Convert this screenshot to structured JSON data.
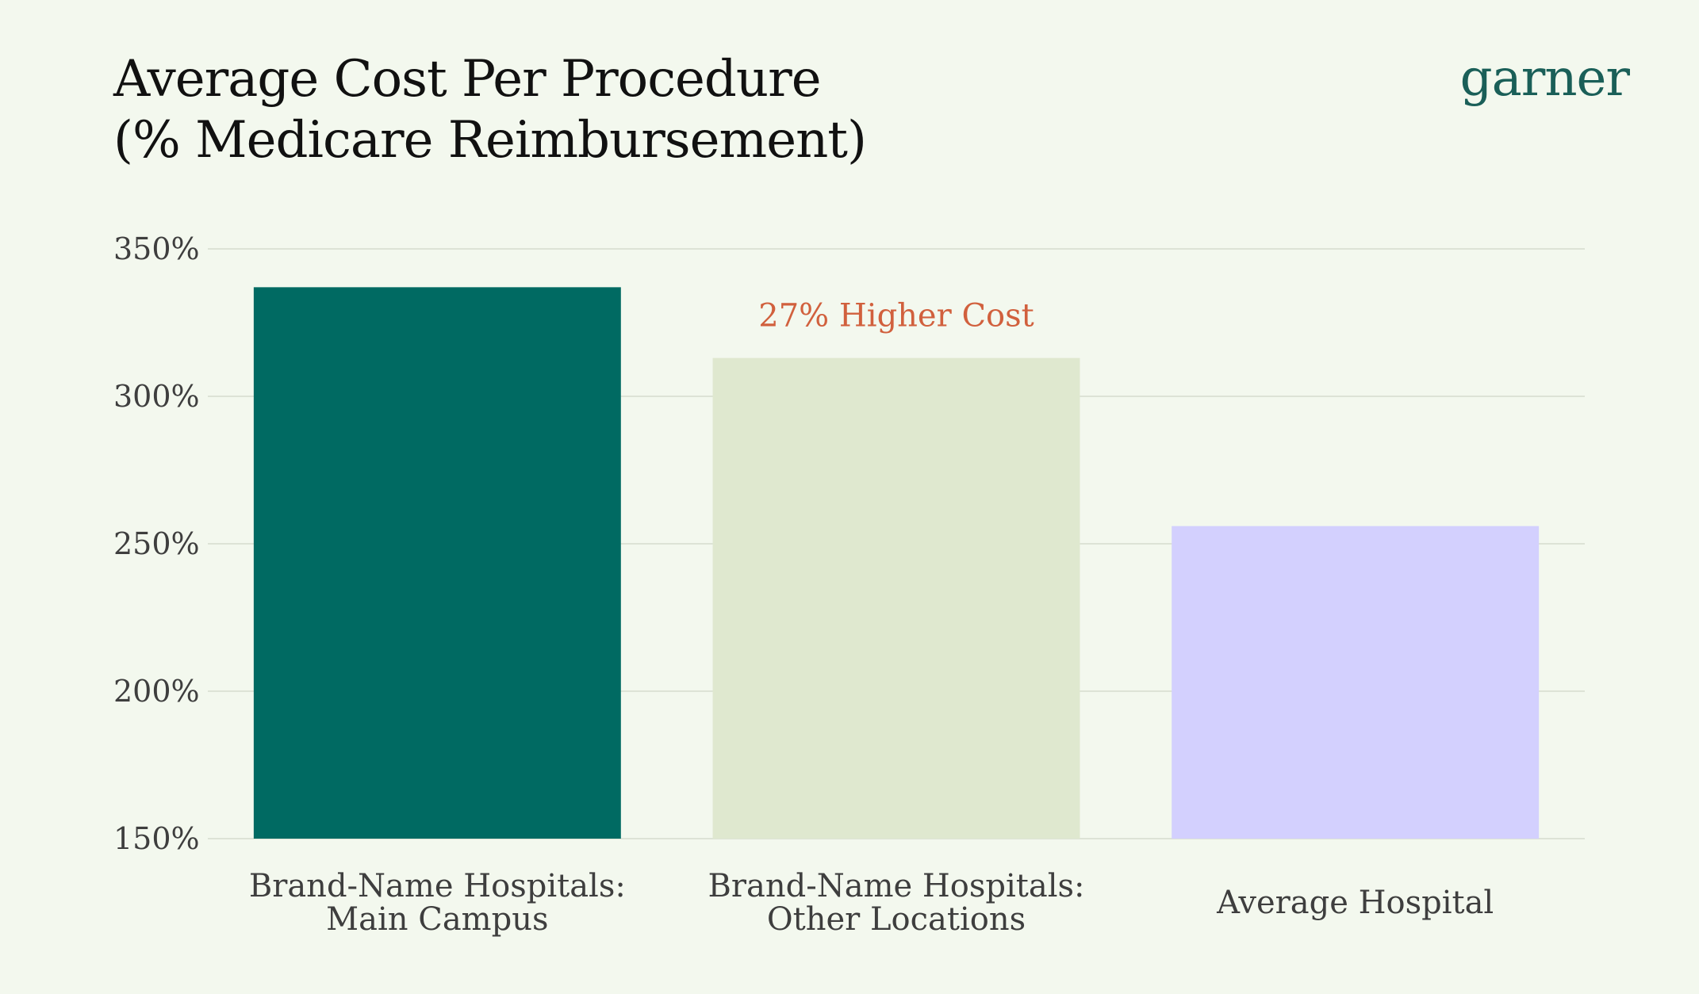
{
  "header": {
    "title_line1": "Average Cost Per Procedure",
    "title_line2": "(% Medicare Reimbursement)",
    "brand": "garner"
  },
  "chart_data": {
    "type": "bar",
    "title": "Average Cost Per Procedure (% Medicare Reimbursement)",
    "categories": [
      [
        "Brand-Name Hospitals:",
        "Main Campus"
      ],
      [
        "Brand-Name Hospitals:",
        "Other Locations"
      ],
      [
        "Average Hospital"
      ]
    ],
    "values": [
      337,
      313,
      256
    ],
    "colors": [
      "#006a62",
      "#dfe8cf",
      "#d3d0fe"
    ],
    "ylim": [
      150,
      350
    ],
    "yticks": [
      150,
      200,
      250,
      300,
      350
    ],
    "ytick_labels": [
      "150%",
      "200%",
      "250%",
      "300%",
      "350%"
    ],
    "xlabel": "",
    "ylabel": "",
    "grid": true,
    "grid_color": "#dde3d6",
    "annotations": [
      {
        "text": "27% Higher Cost",
        "category_index": 1,
        "color": "#d1603d"
      }
    ]
  }
}
